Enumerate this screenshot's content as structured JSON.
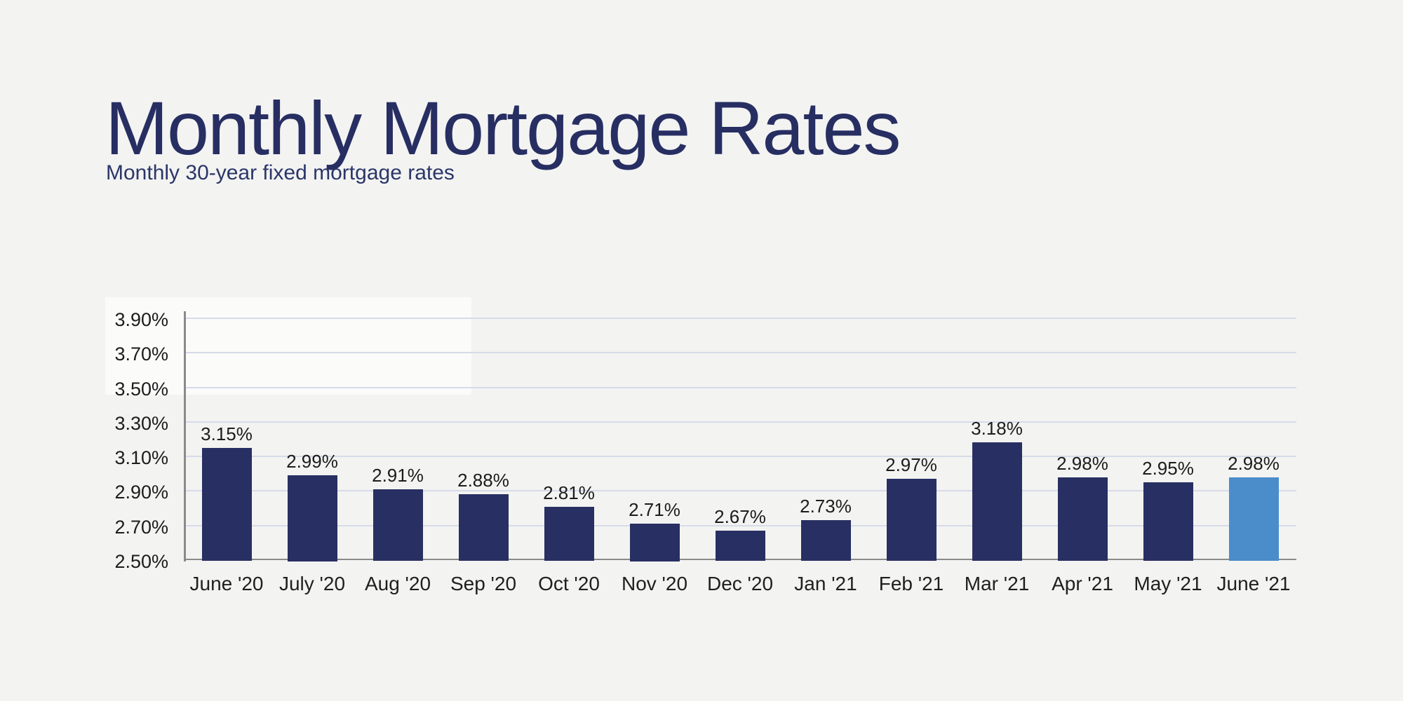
{
  "page": {
    "background_color": "#f3f3f2"
  },
  "header": {
    "title": "Monthly Mortgage Rates",
    "subtitle": "Monthly 30-year fixed mortgage rates",
    "title_color": "#272e62",
    "subtitle_color": "#2b3668"
  },
  "chart_data": {
    "type": "bar",
    "title": "Monthly Mortgage Rates",
    "subtitle": "Monthly 30-year fixed mortgage rates",
    "categories": [
      "June '20",
      "July '20",
      "Aug '20",
      "Sep '20",
      "Oct '20",
      "Nov '20",
      "Dec '20",
      "Jan '21",
      "Feb '21",
      "Mar '21",
      "Apr '21",
      "May '21",
      "June '21"
    ],
    "values": [
      3.15,
      2.99,
      2.91,
      2.88,
      2.81,
      2.71,
      2.67,
      2.73,
      2.97,
      3.18,
      2.98,
      2.95,
      2.98
    ],
    "value_labels": [
      "3.15%",
      "2.99%",
      "2.91%",
      "2.88%",
      "2.81%",
      "2.71%",
      "2.67%",
      "2.73%",
      "2.97%",
      "3.18%",
      "2.98%",
      "2.95%",
      "2.98%"
    ],
    "y_tick_labels": [
      "3.90%",
      "3.70%",
      "3.50%",
      "3.30%",
      "3.10%",
      "2.90%",
      "2.70%",
      "2.50%"
    ],
    "y_tick_values": [
      3.9,
      3.7,
      3.5,
      3.3,
      3.1,
      2.9,
      2.7,
      2.5
    ],
    "ylim": [
      2.5,
      3.9
    ],
    "xlabel": "",
    "ylabel": "",
    "grid": true,
    "legend": "none",
    "bar_color": "#282f62",
    "highlight_color": "#4b8ccb",
    "highlight_index": 12,
    "gridline_color": "#d6dbe9",
    "axis_color": "#8a8a8a",
    "tick_label_color": "#1c1c1c",
    "value_label_color": "#1c1c1c"
  }
}
